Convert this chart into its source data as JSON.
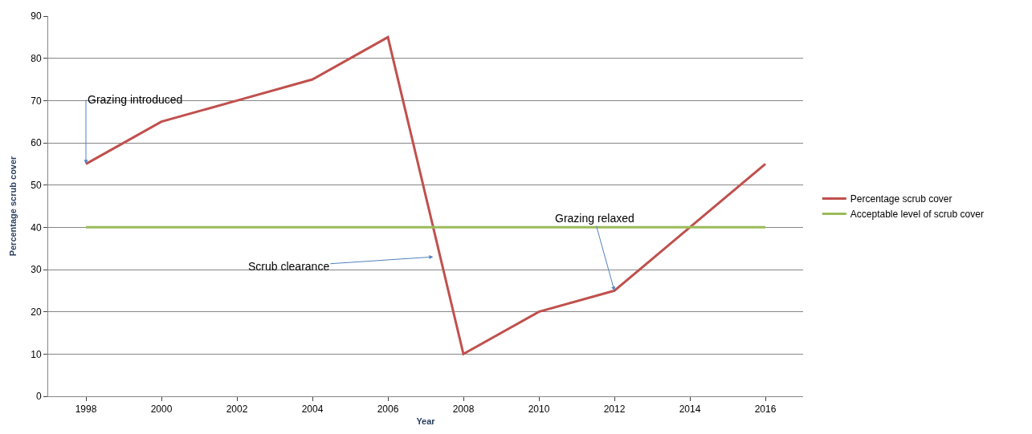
{
  "chart_data": {
    "type": "line",
    "xlabel": "Year",
    "ylabel": "Percentage scrub cover",
    "categories": [
      "1998",
      "2000",
      "2002",
      "2004",
      "2006",
      "2008",
      "2010",
      "2012",
      "2014",
      "2016"
    ],
    "series": [
      {
        "name": "Percentage scrub cover",
        "color": "#c0504d",
        "values": [
          55,
          65,
          70,
          75,
          85,
          10,
          20,
          25,
          40,
          55
        ]
      },
      {
        "name": "Acceptable level of scrub cover",
        "color": "#9bbb59",
        "values": [
          40,
          40,
          40,
          40,
          40,
          40,
          40,
          40,
          40,
          40
        ]
      }
    ],
    "ylim": [
      0,
      90
    ],
    "yticks": [
      0,
      10,
      20,
      30,
      40,
      50,
      60,
      70,
      80,
      90
    ],
    "grid": "y",
    "legend": "right",
    "marker": "none",
    "line_style": "solid",
    "annotations": [
      {
        "text": "Grazing introduced",
        "x": "1998",
        "y": 55
      },
      "Scrub clearance",
      {
        "text": "Grazing relaxed",
        "x": "2012",
        "y": 25
      }
    ]
  }
}
